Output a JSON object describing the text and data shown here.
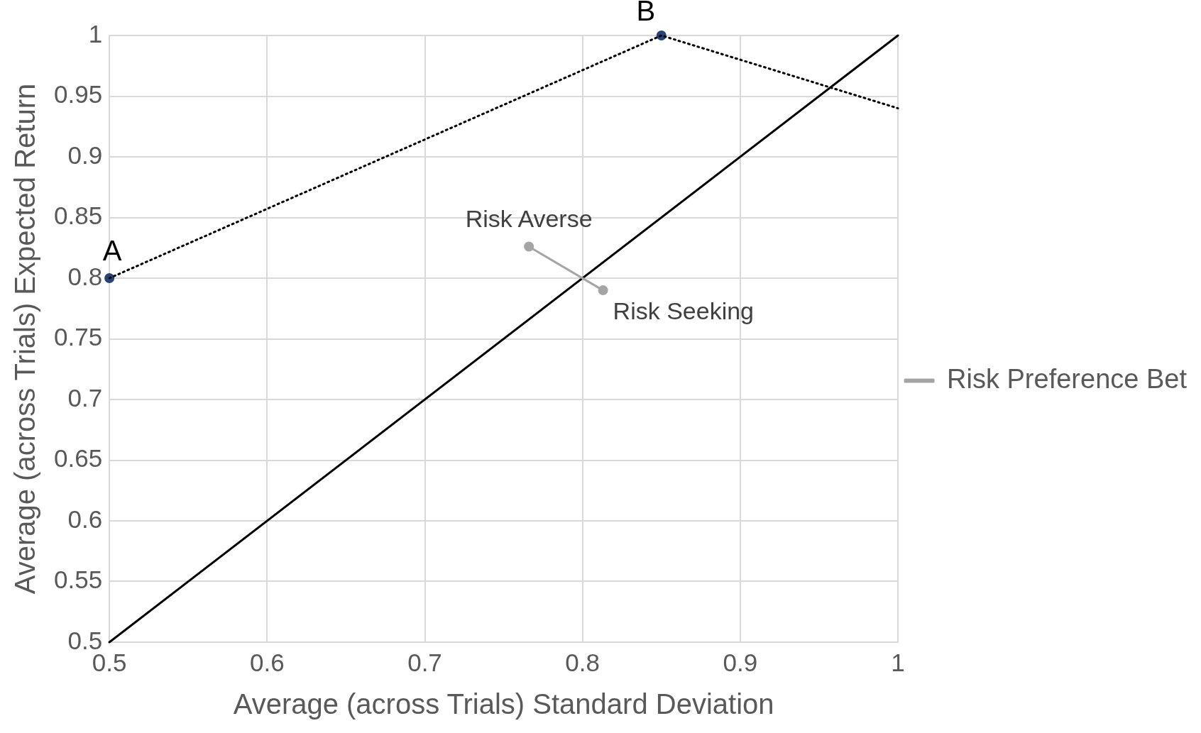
{
  "chart_data": {
    "type": "line",
    "xlabel": "Average (across Trials) Standard Deviation",
    "ylabel": "Average (across Trials) Expected Return",
    "xlim": [
      0.5,
      1
    ],
    "xticks": [
      0.5,
      0.6,
      0.7,
      0.8,
      0.9,
      1
    ],
    "ylim": [
      0.5,
      1
    ],
    "yticks": [
      0.5,
      0.55,
      0.6,
      0.65,
      0.7,
      0.75,
      0.8,
      0.85,
      0.9,
      0.95,
      1
    ],
    "grid": true,
    "legend": "right",
    "series": [
      {
        "name": "Risk Preference Bet",
        "color": "#a5a5a5",
        "x": [
          0.766,
          0.813
        ],
        "values": [
          0.826,
          0.79
        ],
        "marker": "circle"
      },
      {
        "color": "#000000",
        "x": [
          0.5,
          0.85,
          1
        ],
        "values": [
          0.8,
          1,
          0.94
        ],
        "line_style": "dotted",
        "marker": "none"
      },
      {
        "type": "scatter",
        "color": "#264478",
        "x": [
          0.5,
          0.85
        ],
        "values": [
          0.8,
          1
        ],
        "marker": "circle"
      },
      {
        "color": "#000000",
        "x": [
          0.5,
          1
        ],
        "values": [
          0.5,
          1
        ],
        "marker": "none"
      }
    ],
    "annotations": [
      {
        "text": "A",
        "x": 0.5,
        "y": 0.8
      },
      {
        "text": "B",
        "x": 0.85,
        "y": 1
      },
      {
        "text": "Risk Averse",
        "x": 0.766,
        "y": 0.826
      },
      {
        "text": "Risk Seeking",
        "x": 0.813,
        "y": 0.79
      }
    ]
  }
}
